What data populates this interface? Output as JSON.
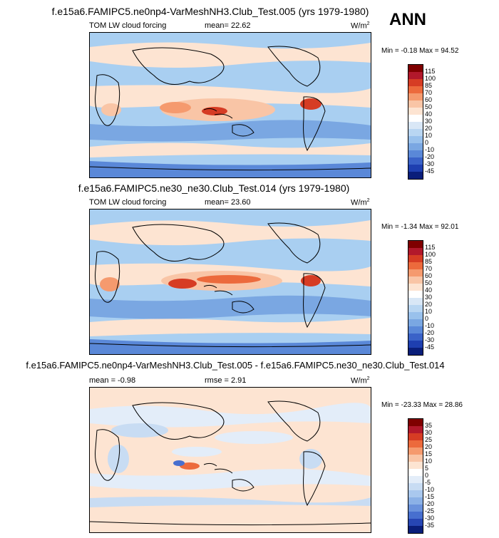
{
  "season": "ANN",
  "panels": [
    {
      "id": "p1",
      "title": "f.e15a6.FAMIPC5.ne0np4-VarMeshNH3.Club_Test.005 (yrs 1979-1980)",
      "var_label": "TOM LW cloud forcing",
      "stat_label": "mean=  22.62",
      "units": "W/m",
      "units_sup": "2",
      "minmax": "Min =  -0.18 Max =  94.52",
      "levels": [
        "115",
        "100",
        "85",
        "70",
        "60",
        "50",
        "40",
        "30",
        "20",
        "10",
        "0",
        "-10",
        "-20",
        "-30",
        "-45"
      ],
      "colors": [
        "#7f0000",
        "#b2182b",
        "#d63c24",
        "#ec6a3c",
        "#f59a6e",
        "#f9c5a6",
        "#fde4d2",
        "#ffffff",
        "#d9e7f6",
        "#b9d6f2",
        "#99c1ec",
        "#7aa7e2",
        "#5a88d8",
        "#3a62c8",
        "#1e3fb0",
        "#0a1e7a"
      ]
    },
    {
      "id": "p2",
      "title": "f.e15a6.FAMIPC5.ne30_ne30.Club_Test.014 (yrs 1979-1980)",
      "var_label": "TOM LW cloud forcing",
      "stat_label": "mean=  23.60",
      "units": "W/m",
      "units_sup": "2",
      "minmax": "Min =  -1.34 Max =  92.01",
      "levels": [
        "115",
        "100",
        "85",
        "70",
        "60",
        "50",
        "40",
        "30",
        "20",
        "10",
        "0",
        "-10",
        "-20",
        "-30",
        "-45"
      ],
      "colors": [
        "#7f0000",
        "#b2182b",
        "#d63c24",
        "#ec6a3c",
        "#f59a6e",
        "#f9c5a6",
        "#fde4d2",
        "#ffffff",
        "#d9e7f6",
        "#b9d6f2",
        "#99c1ec",
        "#7aa7e2",
        "#5a88d8",
        "#3a62c8",
        "#1e3fb0",
        "#0a1e7a"
      ]
    },
    {
      "id": "p3",
      "title": "f.e15a6.FAMIPC5.ne0np4-VarMeshNH3.Club_Test.005 - f.e15a6.FAMIPC5.ne30_ne30.Club_Test.014",
      "var_label": "mean =  -0.98",
      "stat_label": "rmse =   2.91",
      "units": "W/m",
      "units_sup": "2",
      "minmax": "Min = -23.33 Max =  28.86",
      "levels": [
        "35",
        "30",
        "25",
        "20",
        "15",
        "10",
        "5",
        "0",
        "-5",
        "-10",
        "-15",
        "-20",
        "-25",
        "-30",
        "-35"
      ],
      "colors": [
        "#7f0000",
        "#b2182b",
        "#d63c24",
        "#ec6a3c",
        "#f59a6e",
        "#f9c5a6",
        "#fde4d2",
        "#ffffff",
        "#e3edf9",
        "#c8dcf3",
        "#a9c8ee",
        "#8bb1e6",
        "#6a92dc",
        "#476fcf",
        "#2746b4",
        "#0a1e7a"
      ]
    }
  ]
}
